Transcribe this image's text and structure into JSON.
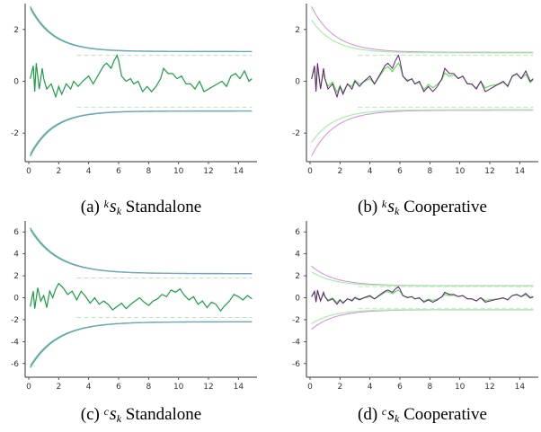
{
  "chart_data": [
    {
      "id": "a",
      "type": "line",
      "caption": {
        "prefix": "(a)",
        "sup": "k",
        "base": "s",
        "sub": "k",
        "suffix": "Standalone"
      },
      "xlim": [
        0,
        15
      ],
      "ylim": [
        -3,
        3
      ],
      "x_ticks": [
        0,
        2,
        4,
        6,
        8,
        10,
        12,
        14
      ],
      "y_ticks": [
        2,
        0,
        -2
      ],
      "bounds": {
        "start": 3.0,
        "end": 1.15,
        "decay": 0.65
      },
      "dashed_level": 1.0,
      "cooperative": false,
      "series": [
        {
          "role": "estimate",
          "x": [
            0.1,
            0.3,
            0.4,
            0.5,
            0.7,
            0.9,
            1.0,
            1.2,
            1.5,
            1.8,
            2.0,
            2.2,
            2.5,
            2.8,
            3.0,
            3.3,
            3.6,
            4.0,
            4.3,
            4.6,
            5.0,
            5.2,
            5.5,
            5.7,
            5.9,
            6.0,
            6.2,
            6.5,
            6.8,
            7.0,
            7.3,
            7.6,
            7.9,
            8.2,
            8.5,
            8.8,
            9.0,
            9.3,
            9.6,
            9.9,
            10.2,
            10.5,
            10.8,
            11.1,
            11.4,
            11.7,
            12.0,
            12.3,
            12.6,
            12.9,
            13.2,
            13.5,
            13.8,
            14.1,
            14.4,
            14.7,
            14.9
          ],
          "y": [
            0.1,
            0.6,
            -0.4,
            0.7,
            -0.3,
            0.5,
            0.1,
            -0.3,
            -0.1,
            -0.6,
            -0.2,
            -0.5,
            -0.1,
            -0.3,
            0.0,
            -0.2,
            0.0,
            0.2,
            -0.1,
            0.2,
            0.6,
            0.7,
            0.5,
            0.8,
            1.0,
            0.8,
            0.2,
            0.0,
            0.1,
            -0.1,
            0.0,
            -0.4,
            -0.2,
            -0.4,
            -0.2,
            0.1,
            0.5,
            0.3,
            0.3,
            0.1,
            0.2,
            -0.1,
            -0.1,
            -0.3,
            0.0,
            -0.4,
            -0.3,
            -0.2,
            -0.1,
            0.0,
            -0.2,
            0.2,
            0.3,
            0.1,
            0.4,
            0.0,
            0.1
          ]
        }
      ]
    },
    {
      "id": "b",
      "type": "line",
      "caption": {
        "prefix": "(b)",
        "sup": "k",
        "base": "s",
        "sub": "k",
        "suffix": "Cooperative"
      },
      "xlim": [
        0,
        15
      ],
      "ylim": [
        -3,
        3
      ],
      "x_ticks": [
        0,
        2,
        4,
        6,
        8,
        10,
        12,
        14
      ],
      "y_ticks": [
        2,
        0,
        -2
      ],
      "bounds": {
        "start": 3.0,
        "end": 1.12,
        "decay": 0.65
      },
      "dashed_level": 1.0,
      "cooperative": true,
      "series": [
        {
          "role": "estimate",
          "x": [
            0.1,
            0.3,
            0.4,
            0.5,
            0.7,
            0.9,
            1.0,
            1.2,
            1.5,
            1.8,
            2.0,
            2.2,
            2.5,
            2.8,
            3.0,
            3.3,
            3.6,
            4.0,
            4.3,
            4.6,
            5.0,
            5.2,
            5.5,
            5.7,
            5.9,
            6.0,
            6.2,
            6.5,
            6.8,
            7.0,
            7.3,
            7.6,
            7.9,
            8.2,
            8.5,
            8.8,
            9.0,
            9.3,
            9.6,
            9.9,
            10.2,
            10.5,
            10.8,
            11.1,
            11.4,
            11.7,
            12.0,
            12.3,
            12.6,
            12.9,
            13.2,
            13.5,
            13.8,
            14.1,
            14.4,
            14.7,
            14.9
          ],
          "y": [
            0.1,
            0.6,
            -0.4,
            0.7,
            -0.3,
            0.5,
            0.1,
            -0.3,
            -0.1,
            -0.6,
            -0.2,
            -0.5,
            -0.1,
            -0.3,
            0.0,
            -0.2,
            0.0,
            0.2,
            -0.1,
            0.2,
            0.6,
            0.7,
            0.5,
            0.8,
            1.0,
            0.8,
            0.2,
            0.0,
            0.1,
            -0.1,
            0.0,
            -0.4,
            -0.2,
            -0.4,
            -0.2,
            0.1,
            0.5,
            0.3,
            0.3,
            0.1,
            0.2,
            -0.1,
            -0.1,
            -0.3,
            0.0,
            -0.4,
            -0.3,
            -0.2,
            -0.1,
            0.0,
            -0.2,
            0.2,
            0.3,
            0.1,
            0.4,
            0.0,
            0.1
          ]
        }
      ]
    },
    {
      "id": "c",
      "type": "line",
      "caption": {
        "prefix": "(c)",
        "sup": "c",
        "base": "s",
        "sub": "k",
        "suffix": "Standalone"
      },
      "xlim": [
        0,
        15
      ],
      "ylim": [
        -7,
        7
      ],
      "x_ticks": [
        0,
        2,
        4,
        6,
        8,
        10,
        12,
        14
      ],
      "y_ticks": [
        6,
        4,
        2,
        0,
        -2,
        -4,
        -6
      ],
      "bounds": {
        "start": 6.6,
        "end": 2.2,
        "decay": 0.55
      },
      "dashed_level": 1.8,
      "cooperative": false,
      "series": [
        {
          "role": "estimate",
          "x": [
            0.1,
            0.3,
            0.4,
            0.6,
            0.8,
            1.0,
            1.2,
            1.4,
            1.6,
            1.8,
            2.0,
            2.3,
            2.6,
            2.9,
            3.2,
            3.5,
            3.8,
            4.1,
            4.4,
            4.7,
            5.0,
            5.3,
            5.6,
            5.9,
            6.2,
            6.5,
            6.8,
            7.1,
            7.4,
            7.7,
            8.0,
            8.3,
            8.6,
            8.9,
            9.2,
            9.5,
            9.8,
            10.1,
            10.4,
            10.7,
            11.0,
            11.3,
            11.6,
            11.9,
            12.2,
            12.5,
            12.8,
            13.1,
            13.4,
            13.7,
            14.0,
            14.3,
            14.6,
            14.9
          ],
          "y": [
            -0.8,
            0.6,
            -1.0,
            0.9,
            -0.3,
            0.2,
            -0.9,
            0.6,
            0.0,
            0.8,
            1.3,
            0.9,
            0.3,
            0.6,
            -0.2,
            0.6,
            0.1,
            -0.5,
            0.0,
            -0.6,
            -0.3,
            -0.6,
            -1.1,
            -0.8,
            -0.5,
            -1.0,
            -0.6,
            -0.3,
            0.0,
            -0.4,
            -0.7,
            -0.3,
            -0.1,
            0.3,
            0.1,
            0.7,
            0.5,
            0.8,
            0.2,
            -0.2,
            0.1,
            -0.6,
            -0.3,
            -0.9,
            -0.4,
            -0.6,
            -1.2,
            -0.7,
            -0.3,
            0.3,
            0.1,
            -0.2,
            0.2,
            -0.1
          ]
        }
      ]
    },
    {
      "id": "d",
      "type": "line",
      "caption": {
        "prefix": "(d)",
        "sup": "c",
        "base": "s",
        "sub": "k",
        "suffix": "Cooperative"
      },
      "xlim": [
        0,
        15
      ],
      "ylim": [
        -7,
        7
      ],
      "x_ticks": [
        0,
        2,
        4,
        6,
        8,
        10,
        12,
        14
      ],
      "y_ticks": [
        6,
        4,
        2,
        0,
        -2,
        -4,
        -6
      ],
      "bounds": {
        "start": 3.0,
        "end": 1.1,
        "decay": 0.65
      },
      "dashed_level": 1.0,
      "cooperative": true,
      "series": [
        {
          "role": "estimate",
          "x": [
            0.1,
            0.3,
            0.4,
            0.5,
            0.7,
            0.9,
            1.0,
            1.2,
            1.5,
            1.8,
            2.0,
            2.2,
            2.5,
            2.8,
            3.0,
            3.3,
            3.6,
            4.0,
            4.3,
            4.6,
            5.0,
            5.2,
            5.5,
            5.7,
            5.9,
            6.0,
            6.2,
            6.5,
            6.8,
            7.0,
            7.3,
            7.6,
            7.9,
            8.2,
            8.5,
            8.8,
            9.0,
            9.3,
            9.6,
            9.9,
            10.2,
            10.5,
            10.8,
            11.1,
            11.4,
            11.7,
            12.0,
            12.3,
            12.6,
            12.9,
            13.2,
            13.5,
            13.8,
            14.1,
            14.4,
            14.7,
            14.9
          ],
          "y": [
            0.1,
            0.6,
            -0.4,
            0.7,
            -0.3,
            0.5,
            0.1,
            -0.3,
            -0.1,
            -0.6,
            -0.2,
            -0.5,
            -0.1,
            -0.3,
            0.0,
            -0.2,
            0.0,
            0.2,
            -0.1,
            0.2,
            0.6,
            0.7,
            0.5,
            0.8,
            1.0,
            0.8,
            0.2,
            0.0,
            0.1,
            -0.1,
            0.0,
            -0.4,
            -0.2,
            -0.4,
            -0.2,
            0.1,
            0.5,
            0.3,
            0.3,
            0.1,
            0.2,
            -0.1,
            -0.1,
            -0.3,
            0.0,
            -0.4,
            -0.3,
            -0.2,
            -0.1,
            0.0,
            -0.2,
            0.2,
            0.3,
            0.1,
            0.4,
            0.0,
            0.1
          ]
        }
      ]
    }
  ],
  "colors": {
    "estimate_green": "#1b9e44",
    "estimate_light": "#5ddf5d",
    "estimate_purple": "#6a1a7a",
    "bound_green": "#3cb867",
    "bound_blue": "#8a9de8",
    "bound_light": "#a6f0a6",
    "bound_pink": "#d48cd8",
    "dashed": "#b8ecb8",
    "axis": "#333333"
  }
}
